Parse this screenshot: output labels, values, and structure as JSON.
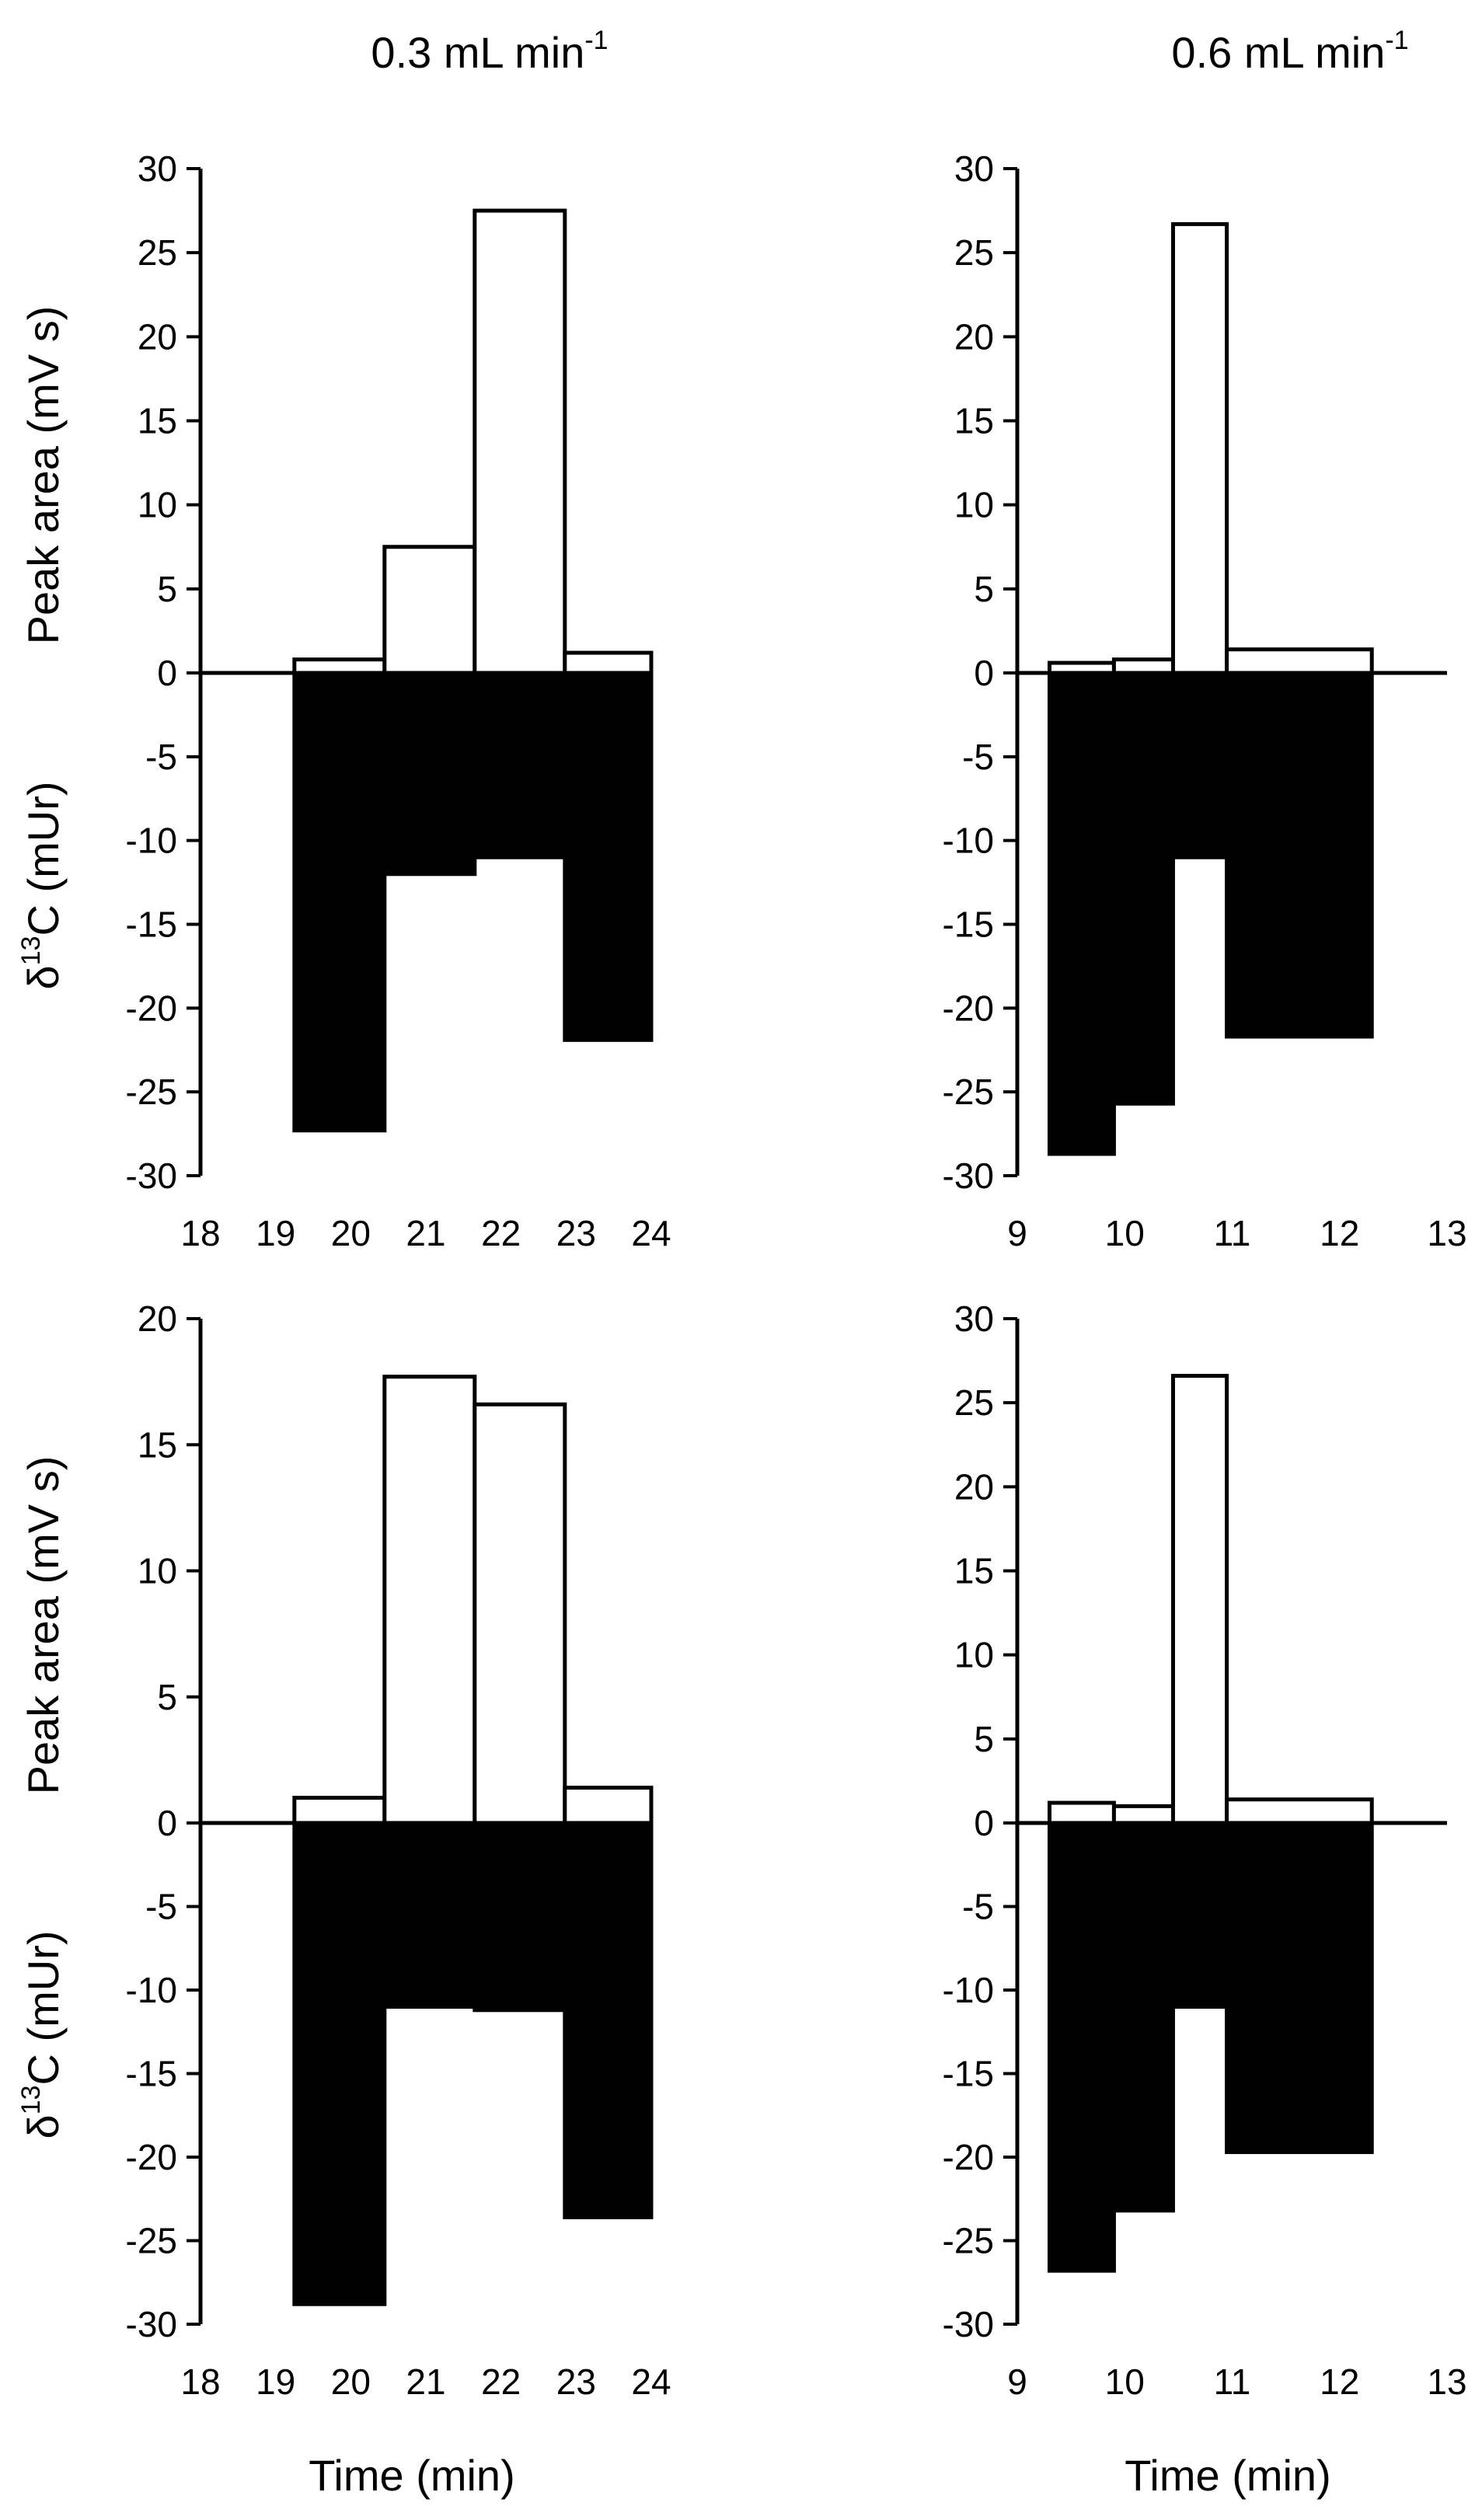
{
  "figure": {
    "column_titles": [
      {
        "text": "0.3 mL min",
        "sup": "-1"
      },
      {
        "text": "0.6 mL min",
        "sup": "-1"
      }
    ],
    "x_axis_title": "Time (min)"
  },
  "chart_data": [
    {
      "type": "bar",
      "ylabel_upper": "Peak area (mV s)",
      "ylabel_lower": {
        "pre": "δ",
        "sup": "13",
        "post": "C (mUr)"
      },
      "ylim": [
        -30,
        30
      ],
      "yticks": [
        30,
        25,
        20,
        15,
        10,
        5,
        0,
        -5,
        -10,
        -15,
        -20,
        -25,
        -30
      ],
      "xlim": [
        18,
        24
      ],
      "xticks": [
        18,
        19,
        20,
        21,
        22,
        23,
        24
      ],
      "fill_colors": {
        "peak_area": "#ffffff",
        "delta13C": "#000000"
      },
      "series": [
        {
          "name": "Peak area",
          "values": [
            0.8,
            7.5,
            27.5,
            1.2
          ]
        },
        {
          "name": "δ13C",
          "values": [
            -27.3,
            -12.0,
            -11.0,
            -21.9
          ]
        }
      ],
      "bins": [
        [
          19.25,
          20.45
        ],
        [
          20.45,
          21.65
        ],
        [
          21.65,
          22.85
        ],
        [
          22.85,
          24.0
        ]
      ]
    },
    {
      "type": "bar",
      "ylim": [
        -30,
        30
      ],
      "yticks": [
        30,
        25,
        20,
        15,
        10,
        5,
        0,
        -5,
        -10,
        -15,
        -20,
        -25,
        -30
      ],
      "xlim": [
        9,
        13
      ],
      "xticks": [
        9,
        10,
        11,
        12,
        13
      ],
      "fill_colors": {
        "peak_area": "#ffffff",
        "delta13C": "#000000"
      },
      "series": [
        {
          "name": "Peak area",
          "values": [
            0.6,
            0.8,
            26.7,
            1.4
          ]
        },
        {
          "name": "δ13C",
          "values": [
            -28.7,
            -25.7,
            -11.0,
            -21.7
          ]
        }
      ],
      "bins": [
        [
          9.3,
          9.9
        ],
        [
          9.9,
          10.45
        ],
        [
          10.45,
          10.95
        ],
        [
          10.95,
          12.3
        ]
      ]
    },
    {
      "type": "bar",
      "ylabel_upper": "Peak area (mV s)",
      "ylabel_lower": {
        "pre": "δ",
        "sup": "13",
        "post": "C (mUr)"
      },
      "ylim_upper": [
        0,
        20
      ],
      "yticks_upper": [
        20,
        15,
        10,
        5,
        0
      ],
      "ylim_lower": [
        -30,
        0
      ],
      "yticks_lower": [
        -5,
        -10,
        -15,
        -20,
        -25,
        -30
      ],
      "xlim": [
        18,
        24
      ],
      "xticks": [
        18,
        19,
        20,
        21,
        22,
        23,
        24
      ],
      "fill_colors": {
        "peak_area": "#ffffff",
        "delta13C": "#000000"
      },
      "series": [
        {
          "name": "Peak area",
          "values": [
            1.0,
            17.7,
            16.6,
            1.4
          ]
        },
        {
          "name": "δ13C",
          "values": [
            -28.8,
            -11.0,
            -11.2,
            -23.6
          ]
        }
      ],
      "bins": [
        [
          19.25,
          20.45
        ],
        [
          20.45,
          21.65
        ],
        [
          21.65,
          22.85
        ],
        [
          22.85,
          24.0
        ]
      ]
    },
    {
      "type": "bar",
      "ylim": [
        -30,
        30
      ],
      "yticks": [
        30,
        25,
        20,
        15,
        10,
        5,
        0,
        -5,
        -10,
        -15,
        -20,
        -25,
        -30
      ],
      "xlim": [
        9,
        13
      ],
      "xticks": [
        9,
        10,
        11,
        12,
        13
      ],
      "fill_colors": {
        "peak_area": "#ffffff",
        "delta13C": "#000000"
      },
      "series": [
        {
          "name": "Peak area",
          "values": [
            1.2,
            1.0,
            26.6,
            1.4
          ]
        },
        {
          "name": "δ13C",
          "values": [
            -26.8,
            -23.2,
            -11.0,
            -19.7
          ]
        }
      ],
      "bins": [
        [
          9.3,
          9.9
        ],
        [
          9.9,
          10.45
        ],
        [
          10.45,
          10.95
        ],
        [
          10.95,
          12.3
        ]
      ]
    }
  ]
}
